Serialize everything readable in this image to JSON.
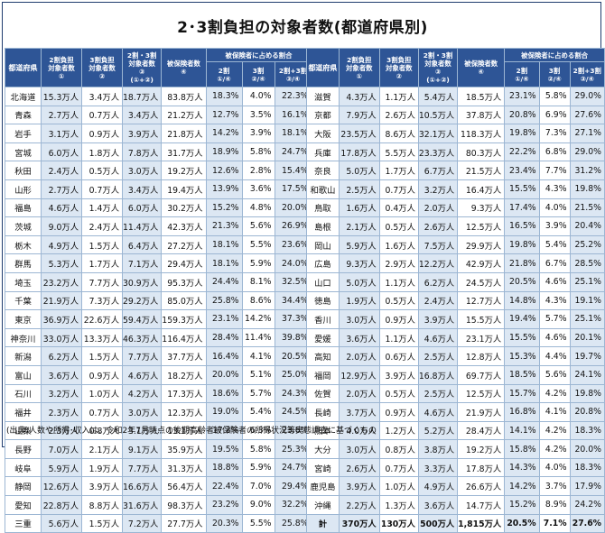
{
  "title": "2･3割負担の対象者数(都道府県別)",
  "headers": {
    "pref": "都道府県",
    "c1a": "2割負担",
    "c1b": "対象者数",
    "c1c": "①",
    "c2a": "3割負担",
    "c2b": "対象者数",
    "c2c": "②",
    "c3a": "2割・3割",
    "c3b": "対象者数",
    "c3c": "③",
    "c3d": "(①+②)",
    "c4a": "被保険者数",
    "c4b": "④",
    "ratio": "被保険者に占める割合",
    "r1a": "2割",
    "r1b": "①/④",
    "r2a": "3割",
    "r2b": "②/④",
    "r3a": "2割+3割",
    "r3b": "③/④"
  },
  "left_rows": [
    [
      "北海道",
      "15.3万人",
      "3.4万人",
      "18.7万人",
      "83.8万人",
      "18.3%",
      "4.0%",
      "22.3%"
    ],
    [
      "青森",
      "2.7万人",
      "0.7万人",
      "3.4万人",
      "21.2万人",
      "12.7%",
      "3.5%",
      "16.1%"
    ],
    [
      "岩手",
      "3.1万人",
      "0.9万人",
      "3.9万人",
      "21.8万人",
      "14.2%",
      "3.9%",
      "18.1%"
    ],
    [
      "宮城",
      "6.0万人",
      "1.8万人",
      "7.8万人",
      "31.7万人",
      "18.9%",
      "5.8%",
      "24.7%"
    ],
    [
      "秋田",
      "2.4万人",
      "0.5万人",
      "3.0万人",
      "19.2万人",
      "12.6%",
      "2.8%",
      "15.4%"
    ],
    [
      "山形",
      "2.7万人",
      "0.7万人",
      "3.4万人",
      "19.4万人",
      "13.9%",
      "3.6%",
      "17.5%"
    ],
    [
      "福島",
      "4.6万人",
      "1.4万人",
      "6.0万人",
      "30.2万人",
      "15.2%",
      "4.8%",
      "20.0%"
    ],
    [
      "茨城",
      "9.0万人",
      "2.4万人",
      "11.4万人",
      "42.3万人",
      "21.3%",
      "5.6%",
      "26.9%"
    ],
    [
      "栃木",
      "4.9万人",
      "1.5万人",
      "6.4万人",
      "27.2万人",
      "18.1%",
      "5.5%",
      "23.6%"
    ],
    [
      "群馬",
      "5.3万人",
      "1.7万人",
      "7.1万人",
      "29.4万人",
      "18.1%",
      "5.9%",
      "24.0%"
    ],
    [
      "埼玉",
      "23.2万人",
      "7.7万人",
      "30.9万人",
      "95.3万人",
      "24.4%",
      "8.1%",
      "32.5%"
    ],
    [
      "千葉",
      "21.9万人",
      "7.3万人",
      "29.2万人",
      "85.0万人",
      "25.8%",
      "8.6%",
      "34.4%"
    ],
    [
      "東京",
      "36.9万人",
      "22.6万人",
      "59.4万人",
      "159.3万人",
      "23.1%",
      "14.2%",
      "37.3%"
    ],
    [
      "神奈川",
      "33.0万人",
      "13.3万人",
      "46.3万人",
      "116.4万人",
      "28.4%",
      "11.4%",
      "39.8%"
    ],
    [
      "新潟",
      "6.2万人",
      "1.5万人",
      "7.7万人",
      "37.7万人",
      "16.4%",
      "4.1%",
      "20.5%"
    ],
    [
      "富山",
      "3.6万人",
      "0.9万人",
      "4.6万人",
      "18.2万人",
      "20.0%",
      "5.1%",
      "25.0%"
    ],
    [
      "石川",
      "3.2万人",
      "1.0万人",
      "4.2万人",
      "17.3万人",
      "18.6%",
      "5.7%",
      "24.3%"
    ],
    [
      "福井",
      "2.3万人",
      "0.7万人",
      "3.0万人",
      "12.3万人",
      "19.0%",
      "5.4%",
      "24.5%"
    ],
    [
      "山梨",
      "2.3万人",
      "0.8万人",
      "3.1万人",
      "13.1万人",
      "17.3%",
      "6.3%",
      "23.6%"
    ],
    [
      "長野",
      "7.0万人",
      "2.1万人",
      "9.1万人",
      "35.9万人",
      "19.5%",
      "5.8%",
      "25.3%"
    ],
    [
      "岐阜",
      "5.9万人",
      "1.9万人",
      "7.7万人",
      "31.3万人",
      "18.8%",
      "5.9%",
      "24.7%"
    ],
    [
      "静岡",
      "12.6万人",
      "3.9万人",
      "16.6万人",
      "56.4万人",
      "22.4%",
      "7.0%",
      "29.4%"
    ],
    [
      "愛知",
      "22.8万人",
      "8.8万人",
      "31.6万人",
      "98.3万人",
      "23.2%",
      "9.0%",
      "32.2%"
    ],
    [
      "三重",
      "5.6万人",
      "1.5万人",
      "7.2万人",
      "27.7万人",
      "20.3%",
      "5.5%",
      "25.8%"
    ]
  ],
  "right_rows": [
    [
      "滋賀",
      "4.3万人",
      "1.1万人",
      "5.4万人",
      "18.5万人",
      "23.1%",
      "5.8%",
      "29.0%"
    ],
    [
      "京都",
      "7.9万人",
      "2.6万人",
      "10.5万人",
      "37.8万人",
      "20.8%",
      "6.9%",
      "27.6%"
    ],
    [
      "大阪",
      "23.5万人",
      "8.6万人",
      "32.1万人",
      "118.3万人",
      "19.8%",
      "7.3%",
      "27.1%"
    ],
    [
      "兵庫",
      "17.8万人",
      "5.5万人",
      "23.3万人",
      "80.3万人",
      "22.2%",
      "6.8%",
      "29.0%"
    ],
    [
      "奈良",
      "5.0万人",
      "1.7万人",
      "6.7万人",
      "21.5万人",
      "23.4%",
      "7.7%",
      "31.2%"
    ],
    [
      "和歌山",
      "2.5万人",
      "0.7万人",
      "3.2万人",
      "16.4万人",
      "15.5%",
      "4.3%",
      "19.8%"
    ],
    [
      "鳥取",
      "1.6万人",
      "0.4万人",
      "2.0万人",
      "9.3万人",
      "17.4%",
      "4.0%",
      "21.5%"
    ],
    [
      "島根",
      "2.1万人",
      "0.5万人",
      "2.6万人",
      "12.5万人",
      "16.5%",
      "3.9%",
      "20.4%"
    ],
    [
      "岡山",
      "5.9万人",
      "1.6万人",
      "7.5万人",
      "29.9万人",
      "19.8%",
      "5.4%",
      "25.2%"
    ],
    [
      "広島",
      "9.3万人",
      "2.9万人",
      "12.2万人",
      "42.9万人",
      "21.8%",
      "6.7%",
      "28.5%"
    ],
    [
      "山口",
      "5.0万人",
      "1.1万人",
      "6.2万人",
      "24.5万人",
      "20.5%",
      "4.6%",
      "25.1%"
    ],
    [
      "徳島",
      "1.9万人",
      "0.5万人",
      "2.4万人",
      "12.7万人",
      "14.8%",
      "4.3%",
      "19.1%"
    ],
    [
      "香川",
      "3.0万人",
      "0.9万人",
      "3.9万人",
      "15.5万人",
      "19.4%",
      "5.7%",
      "25.1%"
    ],
    [
      "愛媛",
      "3.6万人",
      "1.1万人",
      "4.6万人",
      "23.1万人",
      "15.5%",
      "4.6%",
      "20.1%"
    ],
    [
      "高知",
      "2.0万人",
      "0.6万人",
      "2.5万人",
      "12.8万人",
      "15.3%",
      "4.4%",
      "19.7%"
    ],
    [
      "福岡",
      "12.9万人",
      "3.9万人",
      "16.8万人",
      "69.7万人",
      "18.5%",
      "5.6%",
      "24.1%"
    ],
    [
      "佐賀",
      "2.0万人",
      "0.5万人",
      "2.5万人",
      "12.5万人",
      "15.7%",
      "4.2%",
      "19.8%"
    ],
    [
      "長崎",
      "3.7万人",
      "0.9万人",
      "4.6万人",
      "21.9万人",
      "16.8%",
      "4.1%",
      "20.8%"
    ],
    [
      "熊本",
      "4.0万人",
      "1.2万人",
      "5.2万人",
      "28.4万人",
      "14.1%",
      "4.2%",
      "18.3%"
    ],
    [
      "大分",
      "3.0万人",
      "0.8万人",
      "3.8万人",
      "19.2万人",
      "15.8%",
      "4.2%",
      "20.0%"
    ],
    [
      "宮崎",
      "2.6万人",
      "0.7万人",
      "3.3万人",
      "17.8万人",
      "14.3%",
      "4.0%",
      "18.3%"
    ],
    [
      "鹿児島",
      "3.9万人",
      "1.0万人",
      "4.9万人",
      "26.6万人",
      "14.2%",
      "3.7%",
      "17.9%"
    ],
    [
      "沖縄",
      "2.2万人",
      "1.3万人",
      "3.6万人",
      "14.7万人",
      "15.2%",
      "8.9%",
      "24.2%"
    ]
  ],
  "total_row": [
    "計",
    "370万人",
    "130万人",
    "500万人",
    "1,815万人",
    "20.5%",
    "7.1%",
    "27.6%"
  ],
  "source": "(出典)人数や所得･収入は、令和2年7月時点の後期高齢者被保険者の所得状況等実態調査に基づくもの",
  "colors": {
    "header_bg": "#2e5596",
    "shade": "#dce7f3",
    "border": "#9cb6d3"
  }
}
